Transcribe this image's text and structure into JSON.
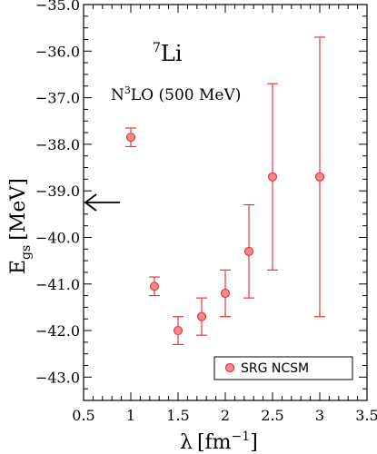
{
  "chart_data": {
    "type": "scatter",
    "x_label_main": "λ",
    "x_label_unit": "[fm",
    "x_label_exp": "−1",
    "x_label_close": "]",
    "y_label_main": "E",
    "y_label_sub": "gs",
    "y_label_unit": "[MeV]",
    "xlim": [
      0.5,
      3.5
    ],
    "ylim": [
      -43.5,
      -35.0
    ],
    "x_ticks": [
      0.5,
      1,
      1.5,
      2,
      2.5,
      3,
      3.5
    ],
    "x_tick_labels": [
      "0.5",
      "1",
      "1.5",
      "2",
      "2.5",
      "3",
      "3.5"
    ],
    "y_ticks": [
      -43,
      -42,
      -41,
      -40,
      -39,
      -38,
      -37,
      -36,
      -35
    ],
    "y_tick_labels": [
      "−43.0",
      "−42.0",
      "−41.0",
      "−40.0",
      "−39.0",
      "−38.0",
      "−37.0",
      "−36.0",
      "−35.0"
    ],
    "series": [
      {
        "name": "SRG NCSM",
        "color": "#e8383d",
        "points": [
          {
            "x": 1.0,
            "y": -37.85,
            "lo": -38.05,
            "hi": -37.65
          },
          {
            "x": 1.25,
            "y": -41.05,
            "lo": -41.25,
            "hi": -40.85
          },
          {
            "x": 1.5,
            "y": -42.0,
            "lo": -42.3,
            "hi": -41.7
          },
          {
            "x": 1.75,
            "y": -41.7,
            "lo": -42.1,
            "hi": -41.3
          },
          {
            "x": 2.0,
            "y": -41.2,
            "lo": -41.7,
            "hi": -40.7
          },
          {
            "x": 2.25,
            "y": -40.3,
            "lo": -41.3,
            "hi": -39.3
          },
          {
            "x": 2.5,
            "y": -38.7,
            "lo": -40.7,
            "hi": -36.7
          },
          {
            "x": 3.0,
            "y": -38.7,
            "lo": -41.7,
            "hi": -35.7
          }
        ]
      }
    ],
    "arrow_value": -39.25,
    "legend_position": "bottom-right",
    "annotation_nucleus_mass": "7",
    "annotation_nucleus_symbol": "Li",
    "annotation_interaction_prefix": "N",
    "annotation_interaction_sup": "3",
    "annotation_interaction_rest": "LO (500 MeV)"
  }
}
